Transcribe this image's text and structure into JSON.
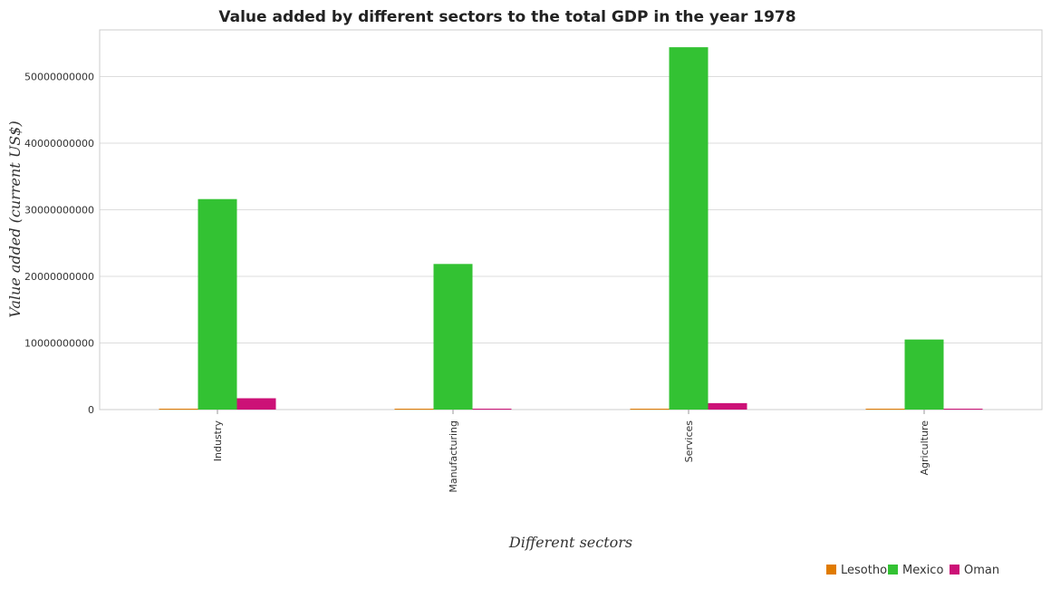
{
  "chart_data": {
    "type": "bar",
    "title": "Value added by different sectors to the total GDP in the year 1978",
    "xlabel": "Different sectors",
    "ylabel": "Value added (current US$)",
    "categories": [
      "Industry",
      "Manufacturing",
      "Services",
      "Agriculture"
    ],
    "ylim": [
      0,
      57000000000
    ],
    "yticks": [
      0,
      10000000000,
      20000000000,
      30000000000,
      40000000000,
      50000000000
    ],
    "ytick_labels": [
      "0",
      "10000000000",
      "20000000000",
      "30000000000",
      "40000000000",
      "50000000000"
    ],
    "grid": true,
    "legend_position": "bottom-right",
    "series": [
      {
        "name": "Lesotho",
        "color": "#e07b00",
        "values": [
          60000000,
          10000000,
          90000000,
          80000000
        ]
      },
      {
        "name": "Mexico",
        "color": "#33c233",
        "values": [
          31600000000,
          21860000000,
          54400000000,
          10520000000
        ]
      },
      {
        "name": "Oman",
        "color": "#cc1177",
        "values": [
          1700000000,
          20000000,
          970000000,
          90000000
        ]
      }
    ]
  }
}
